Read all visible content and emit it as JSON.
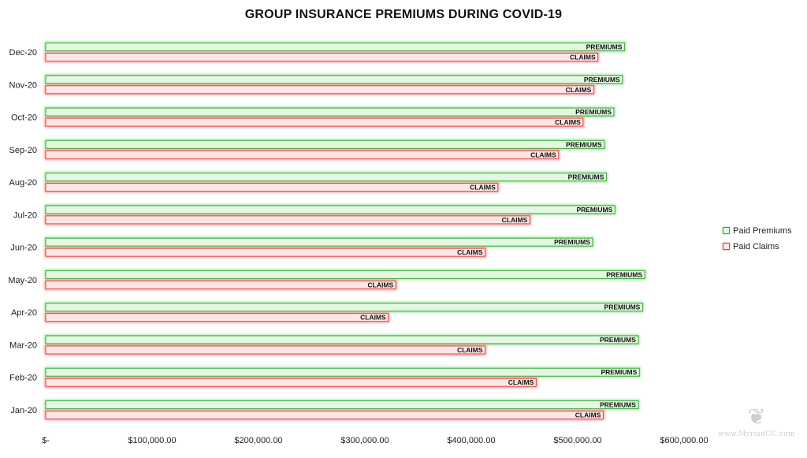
{
  "chart_data": {
    "type": "bar",
    "orientation": "horizontal",
    "title": "GROUP INSURANCE PREMIUMS DURING COVID-19",
    "xlabel": "",
    "ylabel": "",
    "xlim": [
      0,
      600000
    ],
    "x_ticks": [
      0,
      100000,
      200000,
      300000,
      400000,
      500000,
      600000
    ],
    "x_tick_labels": [
      "$-",
      "$100,000.00",
      "$200,000.00",
      "$300,000.00",
      "$400,000.00",
      "$500,000.00",
      "$600,000.00"
    ],
    "categories": [
      "Jan-20",
      "Feb-20",
      "Mar-20",
      "Apr-20",
      "May-20",
      "Jun-20",
      "Jul-20",
      "Aug-20",
      "Sep-20",
      "Oct-20",
      "Nov-20",
      "Dec-20"
    ],
    "series": [
      {
        "name": "Paid Premiums",
        "data_label": "PREMIUMS",
        "color": "#2fa52f",
        "values": [
          557000,
          558000,
          557000,
          561000,
          563000,
          514000,
          535000,
          527000,
          525000,
          534000,
          542000,
          544000
        ]
      },
      {
        "name": "Paid Claims",
        "data_label": "CLAIMS",
        "color": "#e03a3a",
        "values": [
          524000,
          461000,
          413000,
          322000,
          329000,
          413000,
          455000,
          425000,
          482000,
          505000,
          515000,
          519000
        ]
      }
    ],
    "legend_position": "right",
    "grid": false
  },
  "watermark": {
    "text": "www.MyriadGC.com",
    "glyph": "❦"
  }
}
